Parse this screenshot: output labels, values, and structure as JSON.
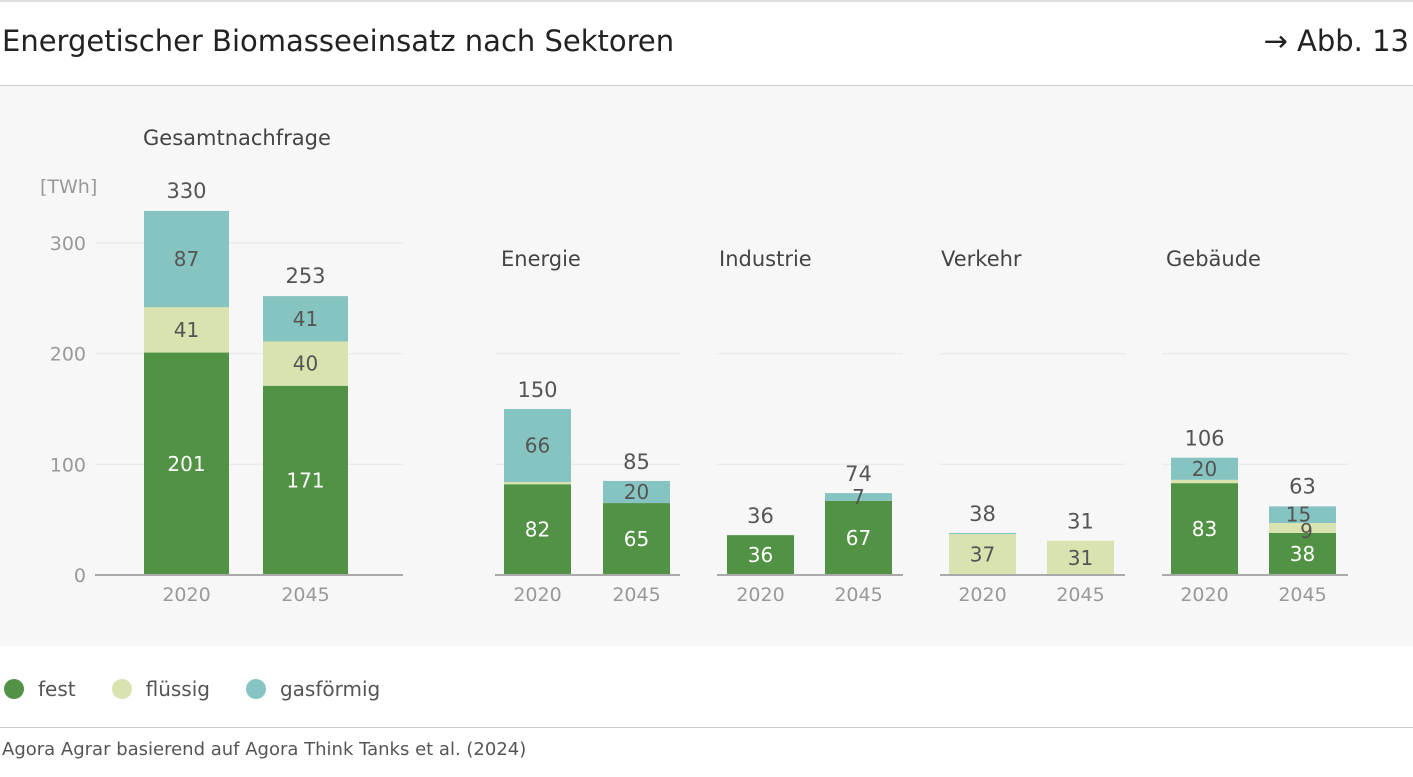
{
  "header": {
    "title": "Energetischer Biomasseeinsatz nach Sektoren",
    "figure_ref": "→ Abb. 13"
  },
  "chart_data": {
    "type": "bar",
    "stacked": true,
    "unit": "[TWh]",
    "ylim": [
      0,
      330
    ],
    "yticks": [
      0,
      100,
      200,
      300
    ],
    "grid": true,
    "colors": {
      "fest": "#519244",
      "flüssig": "#d8e3b0",
      "gasförmig": "#86c4c1"
    },
    "series_names": [
      "fest",
      "flüssig",
      "gasförmig"
    ],
    "panels": [
      {
        "title": "Gesamtnachfrage",
        "categories": [
          "2020",
          "2045"
        ],
        "bars": [
          {
            "total": 330,
            "values": [
              201,
              41,
              87
            ],
            "labels": [
              "201",
              "41",
              "87"
            ]
          },
          {
            "total": 253,
            "values": [
              171,
              40,
              41
            ],
            "labels": [
              "171",
              "40",
              "41"
            ]
          }
        ]
      },
      {
        "title": "Energie",
        "categories": [
          "2020",
          "2045"
        ],
        "bars": [
          {
            "total": 150,
            "values": [
              82,
              2,
              66
            ],
            "labels": [
              "82",
              "",
              "66"
            ]
          },
          {
            "total": 85,
            "values": [
              65,
              0,
              20
            ],
            "labels": [
              "65",
              "",
              "20"
            ]
          }
        ]
      },
      {
        "title": "Industrie",
        "categories": [
          "2020",
          "2045"
        ],
        "bars": [
          {
            "total": 36,
            "values": [
              36,
              0,
              0
            ],
            "labels": [
              "36",
              "",
              ""
            ]
          },
          {
            "total": 74,
            "values": [
              67,
              0,
              7
            ],
            "labels": [
              "67",
              "",
              "7"
            ]
          }
        ]
      },
      {
        "title": "Verkehr",
        "categories": [
          "2020",
          "2045"
        ],
        "bars": [
          {
            "total": 38,
            "values": [
              0,
              37,
              1
            ],
            "labels": [
              "",
              "37",
              ""
            ]
          },
          {
            "total": 31,
            "values": [
              0,
              31,
              0
            ],
            "labels": [
              "",
              "31",
              ""
            ]
          }
        ]
      },
      {
        "title": "Gebäude",
        "categories": [
          "2020",
          "2045"
        ],
        "bars": [
          {
            "total": 106,
            "values": [
              83,
              3,
              20
            ],
            "labels": [
              "83",
              "",
              "20"
            ]
          },
          {
            "total": 63,
            "values": [
              38,
              9,
              15
            ],
            "labels": [
              "38",
              "9",
              "15"
            ]
          }
        ]
      }
    ]
  },
  "legend": [
    {
      "label": "fest",
      "color": "#519244"
    },
    {
      "label": "flüssig",
      "color": "#d8e3b0"
    },
    {
      "label": "gasförmig",
      "color": "#86c4c1"
    }
  ],
  "source": "Agora Agrar basierend auf Agora Think Tanks et al. (2024)"
}
